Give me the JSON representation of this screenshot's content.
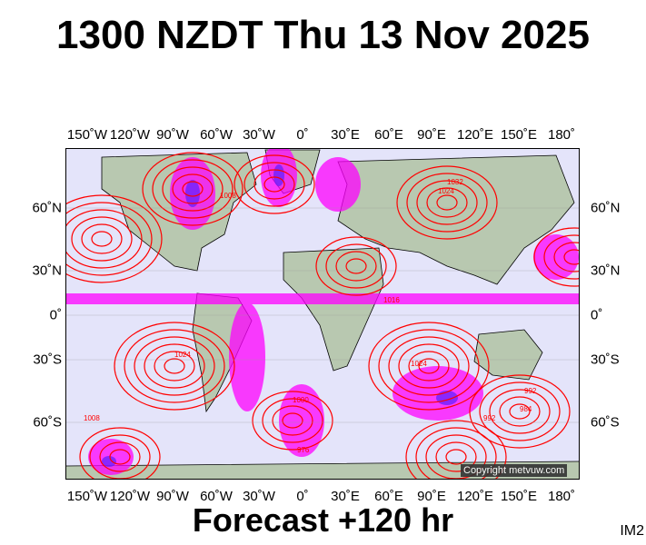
{
  "title": "1300 NZDT Thu 13 Nov 2025",
  "subtitle": "Forecast +120 hr",
  "image_code": "IM2",
  "copyright": "Copyright metvuw.com",
  "longitude_labels": [
    "150˚W",
    "120˚W",
    "90˚W",
    "60˚W",
    "30˚W",
    "0˚",
    "30˚E",
    "60˚E",
    "90˚E",
    "120˚E",
    "150˚E",
    "180˚"
  ],
  "latitude_labels": [
    "60˚N",
    "30˚N",
    "0˚",
    "30˚S",
    "60˚S"
  ],
  "contour_labels": [
    "1024",
    "1032",
    "1008",
    "1024",
    "1016",
    "1000",
    "992",
    "976",
    "984",
    "1024",
    "1008",
    "992"
  ],
  "colors": {
    "ocean": "#e4e4fa",
    "land": "#b8c8b0",
    "isobar": "#ff0000",
    "rain": "#ff00ff",
    "heavy_rain": "#5a20ff"
  }
}
